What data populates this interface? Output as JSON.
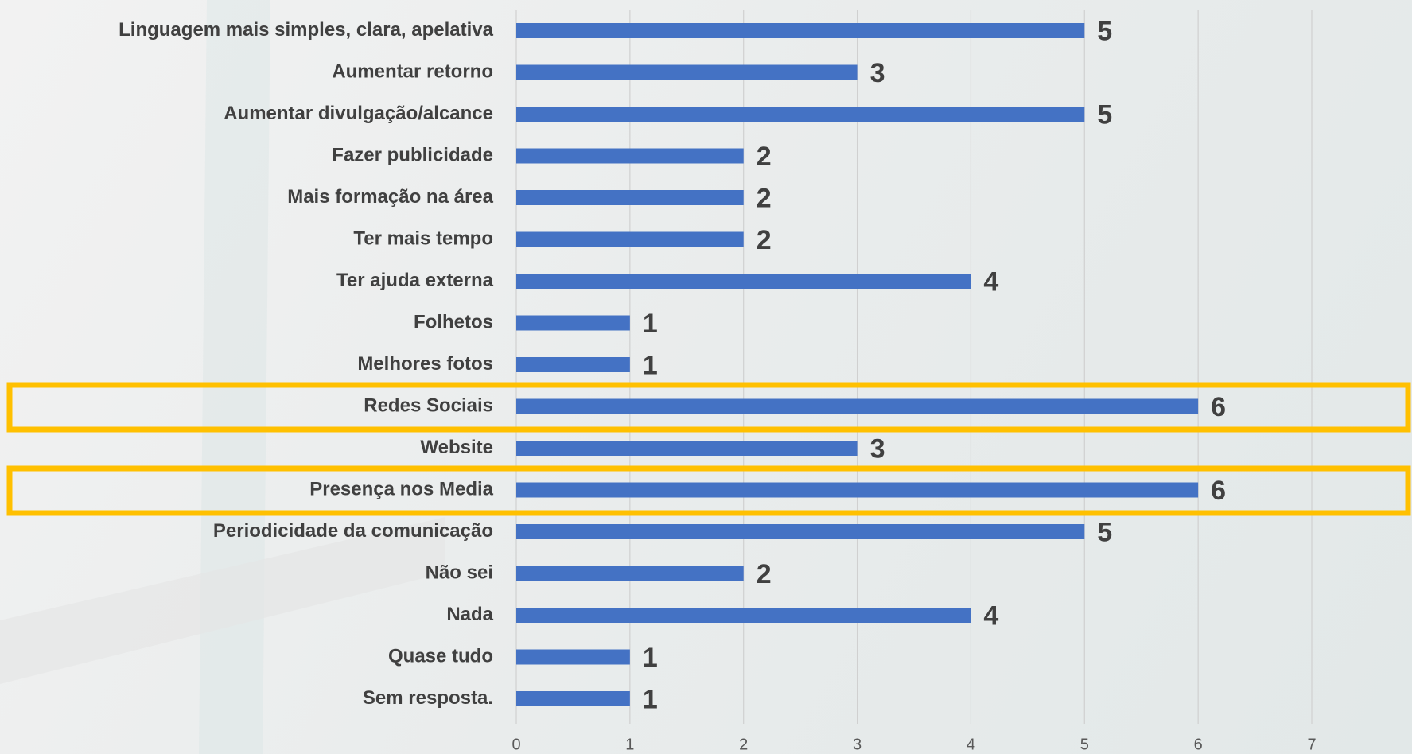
{
  "chart_data": {
    "type": "bar",
    "orientation": "horizontal",
    "categories": [
      "Linguagem mais simples, clara, apelativa",
      "Aumentar retorno",
      "Aumentar divulgação/alcance",
      "Fazer publicidade",
      "Mais formação na área",
      "Ter mais tempo",
      "Ter ajuda externa",
      "Folhetos",
      "Melhores fotos",
      "Redes Sociais",
      "Website",
      "Presença nos Media",
      "Periodicidade da comunicação",
      "Não sei",
      "Nada",
      "Quase tudo",
      "Sem resposta."
    ],
    "values": [
      5,
      3,
      5,
      2,
      2,
      2,
      4,
      1,
      1,
      6,
      3,
      6,
      5,
      2,
      4,
      1,
      1
    ],
    "color": "#4472c4",
    "xlim": [
      0,
      7
    ],
    "xticks": [
      0,
      1,
      2,
      3,
      4,
      5,
      6,
      7
    ],
    "grid": true,
    "highlight": [
      9,
      11
    ],
    "highlight_color": "#ffc000"
  }
}
